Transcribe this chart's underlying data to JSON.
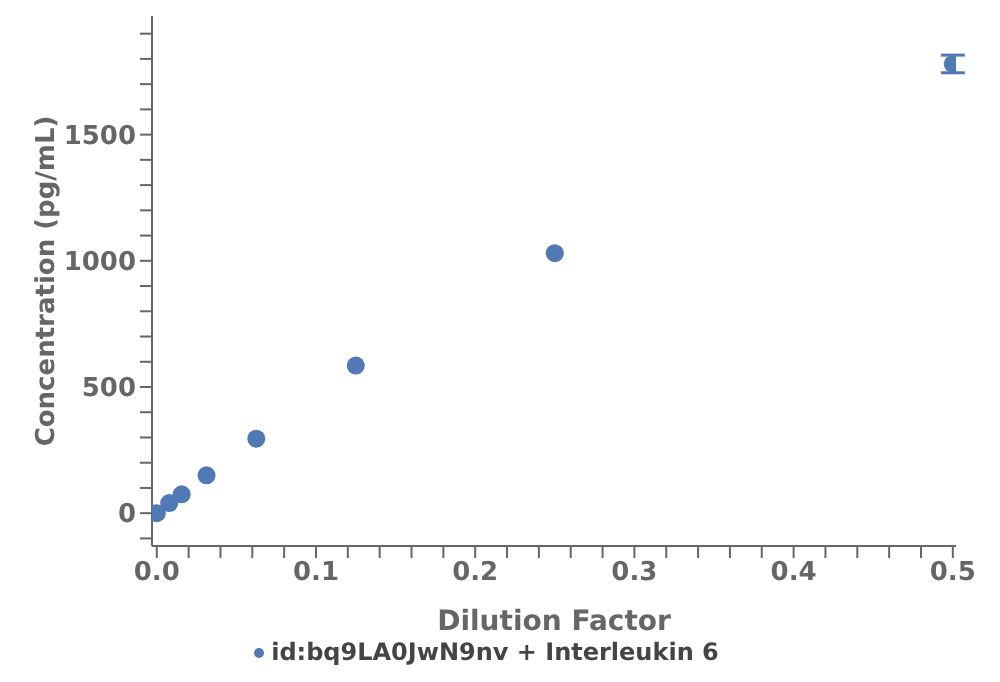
{
  "chart_data": {
    "type": "scatter",
    "xlabel": "Dilution Factor",
    "ylabel": "Concentration (pg/mL)",
    "x": [
      0,
      0.007813,
      0.015625,
      0.03125,
      0.0625,
      0.125,
      0.25,
      0.5
    ],
    "series": [
      {
        "name": "id:bq9LA0JwN9nv + Interleukin 6",
        "color": "#5079b5",
        "values": [
          0,
          40,
          75,
          150,
          295,
          585,
          1030,
          1780
        ],
        "errors": [
          null,
          null,
          null,
          null,
          null,
          null,
          null,
          35
        ]
      }
    ],
    "xlim": [
      -0.003,
      0.502
    ],
    "ylim": [
      -130,
      1970
    ],
    "xticks": [
      {
        "value": 0,
        "label": "0.0"
      },
      {
        "value": 0.02,
        "label": null
      },
      {
        "value": 0.04,
        "label": null
      },
      {
        "value": 0.06,
        "label": null
      },
      {
        "value": 0.08,
        "label": null
      },
      0.1,
      {
        "value": 0.12,
        "label": null
      },
      {
        "value": 0.14,
        "label": null
      },
      {
        "value": 0.16,
        "label": null
      },
      {
        "value": 0.18,
        "label": null
      },
      0.2,
      {
        "value": 0.22,
        "label": null
      },
      {
        "value": 0.24,
        "label": null
      },
      {
        "value": 0.26,
        "label": null
      },
      {
        "value": 0.28,
        "label": null
      },
      0.3,
      {
        "value": 0.32,
        "label": null
      },
      {
        "value": 0.34,
        "label": null
      },
      {
        "value": 0.36,
        "label": null
      },
      {
        "value": 0.38,
        "label": null
      },
      0.4,
      {
        "value": 0.42,
        "label": null
      },
      {
        "value": 0.44,
        "label": null
      },
      {
        "value": 0.46,
        "label": null
      },
      {
        "value": 0.48,
        "label": null
      },
      0.5
    ],
    "yticks": [
      {
        "value": -100,
        "label": null
      },
      0,
      {
        "value": 100,
        "label": null
      },
      {
        "value": 200,
        "label": null
      },
      {
        "value": 300,
        "label": null
      },
      {
        "value": 400,
        "label": null
      },
      500,
      {
        "value": 600,
        "label": null
      },
      {
        "value": 700,
        "label": null
      },
      {
        "value": 800,
        "label": null
      },
      {
        "value": 900,
        "label": null
      },
      1000,
      {
        "value": 1100,
        "label": null
      },
      {
        "value": 1200,
        "label": null
      },
      {
        "value": 1300,
        "label": null
      },
      {
        "value": 1400,
        "label": null
      },
      1500,
      {
        "value": 1600,
        "label": null
      },
      {
        "value": 1700,
        "label": null
      },
      {
        "value": 1800,
        "label": null
      },
      {
        "value": 1900,
        "label": null
      }
    ],
    "grid": false,
    "legend": "bottom",
    "marker": "circle"
  }
}
